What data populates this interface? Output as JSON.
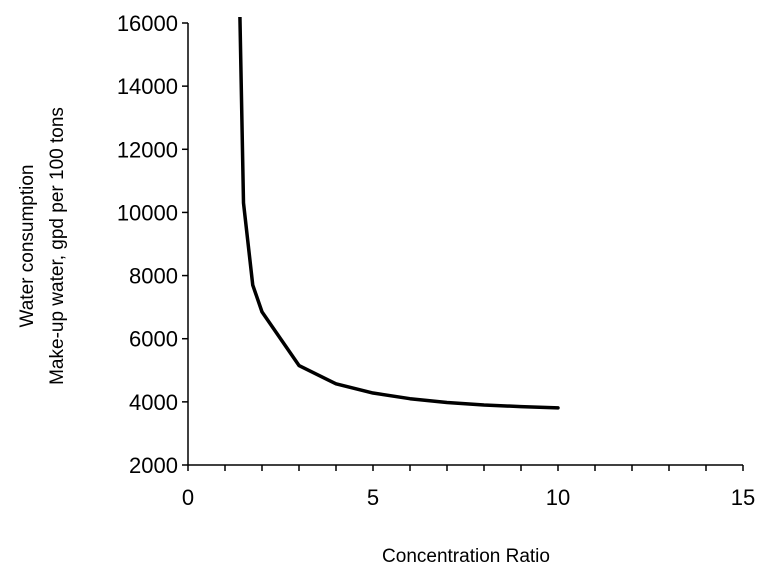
{
  "chart_data": {
    "type": "line",
    "title": "",
    "xlabel": "Concentration Ratio",
    "ylabel_lines": [
      "Water consumption",
      "Make-up water, gpd per 100 tons"
    ],
    "xlim": [
      0,
      15
    ],
    "ylim": [
      2000,
      16000
    ],
    "x_ticks": [
      0,
      5,
      10,
      15
    ],
    "x_tick_labels": [
      "0",
      "5",
      "10",
      "15"
    ],
    "x_minor_step": 1,
    "y_ticks": [
      2000,
      4000,
      6000,
      8000,
      10000,
      12000,
      14000,
      16000
    ],
    "y_tick_labels": [
      "2000",
      "4000",
      "6000",
      "8000",
      "10000",
      "12000",
      "14000",
      "16000"
    ],
    "grid": false,
    "legend": "none",
    "series": [
      {
        "color": "#000000",
        "x": [
          1.4,
          1.5,
          1.75,
          2,
          3,
          4,
          5,
          6,
          7,
          8,
          9,
          10
        ],
        "y": [
          16400,
          10300,
          7700,
          6850,
          5150,
          4570,
          4280,
          4100,
          3980,
          3900,
          3850,
          3810
        ]
      }
    ]
  }
}
